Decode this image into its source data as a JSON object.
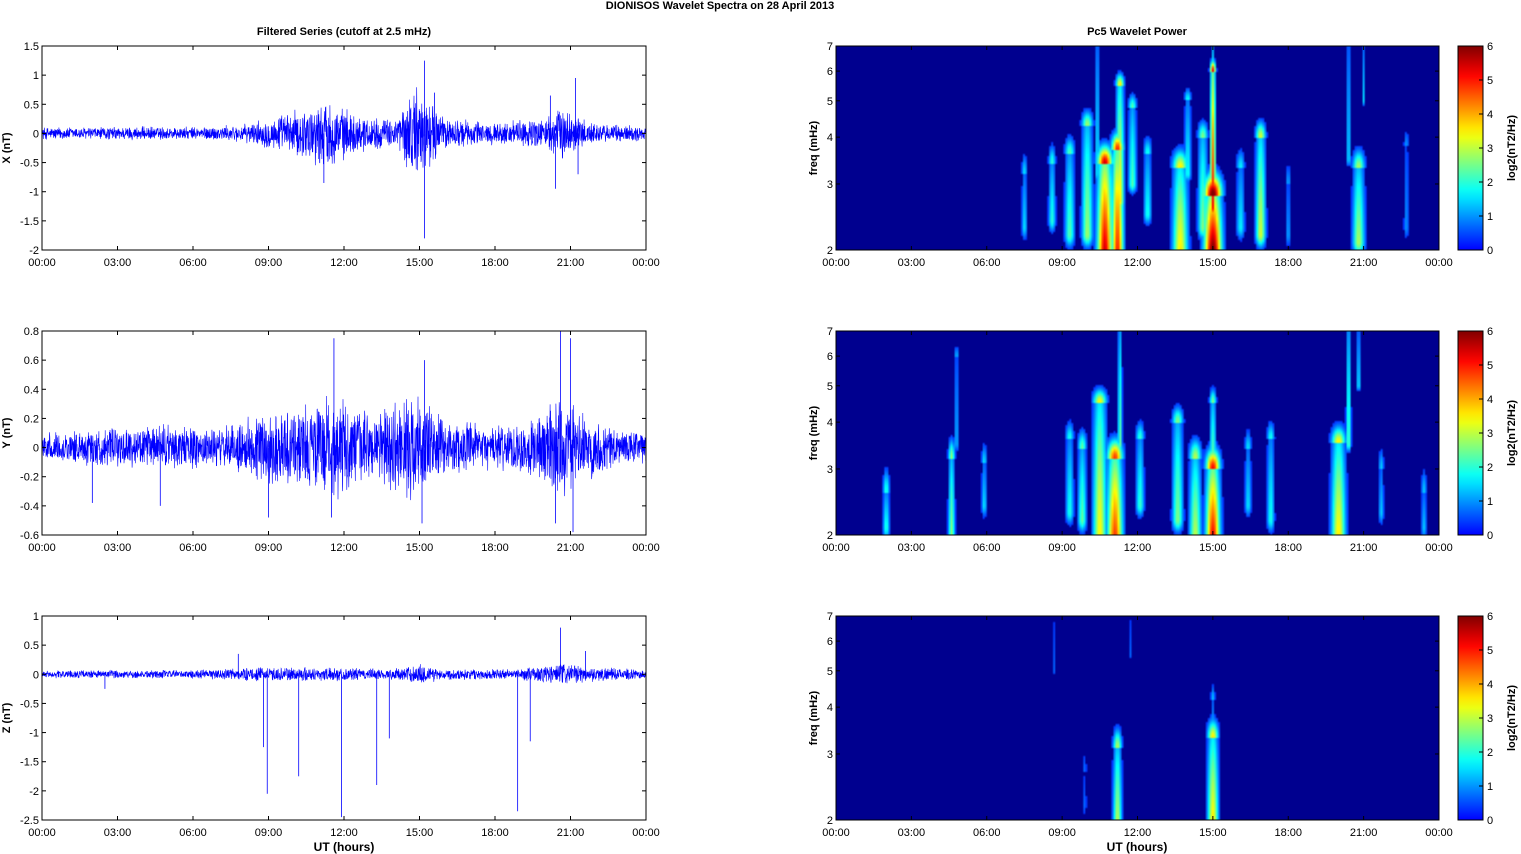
{
  "figure": {
    "title": "DIONISOS Wavelet Spectra on 28 April     2013",
    "left_title": "Filtered Series (cutoff at 2.5 mHz)",
    "right_title": "Pc5 Wavelet Power",
    "xlabel": "UT (hours)"
  },
  "colors": {
    "trace": "#0000ff",
    "background": "#00008f",
    "axis": "#000000"
  },
  "chart_data": [
    {
      "type": "line",
      "id": "X",
      "ylabel": "X (nT)",
      "ylim": [
        -2,
        1.5
      ],
      "yticks": [
        "1.5",
        "1",
        "0.5",
        "0",
        "-0.5",
        "-1",
        "-1.5",
        "-2"
      ],
      "x_ticks": [
        "00:00",
        "03:00",
        "06:00",
        "09:00",
        "12:00",
        "15:00",
        "18:00",
        "21:00",
        "00:00"
      ],
      "xlim_hours": [
        0,
        24
      ],
      "envelope": [
        [
          0,
          0.12
        ],
        [
          2,
          0.12
        ],
        [
          4,
          0.13
        ],
        [
          6,
          0.12
        ],
        [
          8,
          0.16
        ],
        [
          9.5,
          0.35
        ],
        [
          10.5,
          0.5
        ],
        [
          11.3,
          0.65
        ],
        [
          12.5,
          0.35
        ],
        [
          14,
          0.25
        ],
        [
          14.8,
          0.9
        ],
        [
          15.3,
          0.7
        ],
        [
          16,
          0.3
        ],
        [
          18,
          0.2
        ],
        [
          20,
          0.3
        ],
        [
          20.6,
          0.5
        ],
        [
          21.5,
          0.3
        ],
        [
          22,
          0.18
        ],
        [
          24,
          0.15
        ]
      ],
      "spikes": [
        {
          "x": 15.2,
          "y": 1.25
        },
        {
          "x": 15.2,
          "y": -1.8
        },
        {
          "x": 21.2,
          "y": 0.95
        },
        {
          "x": 20.4,
          "y": -0.95
        },
        {
          "x": 21.3,
          "y": -0.7
        },
        {
          "x": 11.2,
          "y": -0.85
        },
        {
          "x": 15.6,
          "y": 0.7
        },
        {
          "x": 20.2,
          "y": 0.65
        }
      ]
    },
    {
      "type": "line",
      "id": "Y",
      "ylabel": "Y (nT)",
      "ylim": [
        -0.6,
        0.8
      ],
      "yticks": [
        "0.8",
        "0.6",
        "0.4",
        "0.2",
        "0",
        "-0.2",
        "-0.4",
        "-0.6"
      ],
      "x_ticks": [
        "00:00",
        "03:00",
        "06:00",
        "09:00",
        "12:00",
        "15:00",
        "18:00",
        "21:00",
        "00:00"
      ],
      "xlim_hours": [
        0,
        24
      ],
      "envelope": [
        [
          0,
          0.1
        ],
        [
          2,
          0.14
        ],
        [
          4,
          0.15
        ],
        [
          5,
          0.18
        ],
        [
          7,
          0.14
        ],
        [
          9,
          0.28
        ],
        [
          10.5,
          0.32
        ],
        [
          11.5,
          0.4
        ],
        [
          13,
          0.25
        ],
        [
          15,
          0.4
        ],
        [
          16,
          0.2
        ],
        [
          18,
          0.16
        ],
        [
          19.5,
          0.22
        ],
        [
          20.5,
          0.4
        ],
        [
          21.5,
          0.25
        ],
        [
          23,
          0.14
        ],
        [
          24,
          0.12
        ]
      ],
      "spikes": [
        {
          "x": 11.6,
          "y": 0.75
        },
        {
          "x": 20.6,
          "y": 0.8
        },
        {
          "x": 15.2,
          "y": 0.6
        },
        {
          "x": 21,
          "y": 0.75
        },
        {
          "x": 21.1,
          "y": -0.58
        },
        {
          "x": 20.4,
          "y": -0.52
        },
        {
          "x": 15.1,
          "y": -0.52
        },
        {
          "x": 9,
          "y": -0.48
        },
        {
          "x": 11.5,
          "y": -0.48
        },
        {
          "x": 2,
          "y": -0.38
        },
        {
          "x": 4.7,
          "y": -0.4
        }
      ]
    },
    {
      "type": "line",
      "id": "Z",
      "ylabel": "Z (nT)",
      "ylim": [
        -2.5,
        1
      ],
      "yticks": [
        "1",
        "0.5",
        "0",
        "-0.5",
        "-1",
        "-1.5",
        "-2",
        "-2.5"
      ],
      "x_ticks": [
        "00:00",
        "03:00",
        "06:00",
        "09:00",
        "12:00",
        "15:00",
        "18:00",
        "21:00",
        "00:00"
      ],
      "xlim_hours": [
        0,
        24
      ],
      "envelope": [
        [
          0,
          0.07
        ],
        [
          3,
          0.08
        ],
        [
          6,
          0.08
        ],
        [
          8,
          0.12
        ],
        [
          10,
          0.14
        ],
        [
          12,
          0.12
        ],
        [
          14,
          0.1
        ],
        [
          15,
          0.2
        ],
        [
          16,
          0.1
        ],
        [
          19,
          0.1
        ],
        [
          20.5,
          0.22
        ],
        [
          21.5,
          0.15
        ],
        [
          24,
          0.08
        ]
      ],
      "spikes": [
        {
          "x": 8.8,
          "y": -1.25
        },
        {
          "x": 8.95,
          "y": -2.05
        },
        {
          "x": 10.2,
          "y": -1.75
        },
        {
          "x": 11.9,
          "y": -2.45
        },
        {
          "x": 13.3,
          "y": -1.9
        },
        {
          "x": 13.8,
          "y": -1.1
        },
        {
          "x": 18.9,
          "y": -2.35
        },
        {
          "x": 19.4,
          "y": -1.15
        },
        {
          "x": 20.6,
          "y": 0.8
        },
        {
          "x": 21.6,
          "y": 0.4
        },
        {
          "x": 2.5,
          "y": -0.25
        },
        {
          "x": 7.8,
          "y": 0.35
        }
      ]
    },
    {
      "type": "heatmap",
      "id": "X-power",
      "ylabel": "freq (mHz)",
      "zlabel": "log2(nT2/Hz)",
      "ylim_mhz": [
        2,
        7
      ],
      "yticks": [
        "7",
        "6",
        "5",
        "4",
        "3",
        "2"
      ],
      "zlim": [
        0,
        6
      ],
      "zticks": [
        "6",
        "5",
        "4",
        "3",
        "2",
        "1",
        "0"
      ],
      "colormap": "jet",
      "x_ticks": [
        "00:00",
        "03:00",
        "06:00",
        "09:00",
        "12:00",
        "15:00",
        "18:00",
        "21:00",
        "00:00"
      ],
      "blobs": [
        {
          "t": 7.5,
          "f0": 2.3,
          "f1": 3.2,
          "w": 0.1,
          "p": 1.6
        },
        {
          "t": 8.6,
          "f0": 2.4,
          "f1": 3.4,
          "w": 0.13,
          "p": 2.0
        },
        {
          "t": 9.3,
          "f0": 2.2,
          "f1": 3.6,
          "w": 0.18,
          "p": 2.3
        },
        {
          "t": 10.0,
          "f0": 2.2,
          "f1": 4.3,
          "w": 0.2,
          "p": 2.8
        },
        {
          "t": 10.7,
          "f0": 2.0,
          "f1": 3.4,
          "w": 0.28,
          "p": 5.5
        },
        {
          "t": 11.2,
          "f0": 2.0,
          "f1": 3.7,
          "w": 0.22,
          "p": 5.0
        },
        {
          "t": 11.3,
          "f0": 2.7,
          "f1": 5.5,
          "w": 0.15,
          "p": 3.6
        },
        {
          "t": 10.4,
          "f0": 3.2,
          "f1": 7.0,
          "w": 0.08,
          "p": 1.8
        },
        {
          "t": 11.8,
          "f0": 3.0,
          "f1": 4.8,
          "w": 0.15,
          "p": 2.3
        },
        {
          "t": 12.4,
          "f0": 2.5,
          "f1": 3.6,
          "w": 0.15,
          "p": 1.9
        },
        {
          "t": 13.7,
          "f0": 2.0,
          "f1": 3.3,
          "w": 0.28,
          "p": 3.6
        },
        {
          "t": 14.0,
          "f0": 3.2,
          "f1": 5.0,
          "w": 0.12,
          "p": 1.9
        },
        {
          "t": 14.6,
          "f0": 2.3,
          "f1": 4.0,
          "w": 0.18,
          "p": 2.6
        },
        {
          "t": 15.0,
          "f0": 2.0,
          "f1": 2.8,
          "w": 0.32,
          "p": 6.2
        },
        {
          "t": 15.0,
          "f0": 2.6,
          "f1": 6.0,
          "w": 0.1,
          "p": 5.2
        },
        {
          "t": 15.0,
          "f0": 5.5,
          "f1": 7.0,
          "w": 0.05,
          "p": 2.2
        },
        {
          "t": 16.1,
          "f0": 2.3,
          "f1": 3.3,
          "w": 0.15,
          "p": 1.7
        },
        {
          "t": 16.9,
          "f0": 2.2,
          "f1": 4.0,
          "w": 0.18,
          "p": 3.2
        },
        {
          "t": 18.0,
          "f0": 2.2,
          "f1": 3.0,
          "w": 0.1,
          "p": 1.1
        },
        {
          "t": 20.8,
          "f0": 2.1,
          "f1": 3.3,
          "w": 0.22,
          "p": 2.9
        },
        {
          "t": 20.4,
          "f0": 3.5,
          "f1": 7.0,
          "w": 0.08,
          "p": 1.6
        },
        {
          "t": 21.0,
          "f0": 5.0,
          "f1": 7.0,
          "w": 0.06,
          "p": 1.4
        },
        {
          "t": 22.7,
          "f0": 2.3,
          "f1": 3.8,
          "w": 0.1,
          "p": 1.0
        }
      ]
    },
    {
      "type": "heatmap",
      "id": "Y-power",
      "ylabel": "freq (mHz)",
      "zlabel": "log2(nT2/Hz)",
      "ylim_mhz": [
        2,
        7
      ],
      "yticks": [
        "7",
        "6",
        "5",
        "4",
        "3",
        "2"
      ],
      "zlim": [
        0,
        6
      ],
      "zticks": [
        "6",
        "5",
        "4",
        "3",
        "2",
        "1",
        "0"
      ],
      "colormap": "jet",
      "x_ticks": [
        "00:00",
        "03:00",
        "06:00",
        "09:00",
        "12:00",
        "15:00",
        "18:00",
        "21:00",
        "00:00"
      ],
      "blobs": [
        {
          "t": 2.0,
          "f0": 2.1,
          "f1": 2.6,
          "w": 0.12,
          "p": 2.0
        },
        {
          "t": 4.6,
          "f0": 2.0,
          "f1": 3.2,
          "w": 0.12,
          "p": 2.7
        },
        {
          "t": 4.8,
          "f0": 3.5,
          "f1": 6.0,
          "w": 0.06,
          "p": 1.6
        },
        {
          "t": 5.9,
          "f0": 2.4,
          "f1": 3.1,
          "w": 0.1,
          "p": 1.6
        },
        {
          "t": 9.3,
          "f0": 2.3,
          "f1": 3.6,
          "w": 0.15,
          "p": 1.9
        },
        {
          "t": 9.8,
          "f0": 2.2,
          "f1": 3.4,
          "w": 0.16,
          "p": 2.4
        },
        {
          "t": 10.5,
          "f0": 2.0,
          "f1": 4.5,
          "w": 0.25,
          "p": 3.5
        },
        {
          "t": 11.1,
          "f0": 2.0,
          "f1": 3.2,
          "w": 0.28,
          "p": 4.8
        },
        {
          "t": 11.3,
          "f0": 3.5,
          "f1": 7.0,
          "w": 0.08,
          "p": 2.5
        },
        {
          "t": 12.1,
          "f0": 2.4,
          "f1": 3.6,
          "w": 0.15,
          "p": 2.1
        },
        {
          "t": 13.6,
          "f0": 2.2,
          "f1": 4.0,
          "w": 0.2,
          "p": 2.6
        },
        {
          "t": 14.3,
          "f0": 2.0,
          "f1": 3.2,
          "w": 0.22,
          "p": 3.0
        },
        {
          "t": 15.0,
          "f0": 2.0,
          "f1": 3.0,
          "w": 0.26,
          "p": 5.2
        },
        {
          "t": 15.0,
          "f0": 3.0,
          "f1": 4.5,
          "w": 0.12,
          "p": 2.6
        },
        {
          "t": 16.4,
          "f0": 2.4,
          "f1": 3.4,
          "w": 0.12,
          "p": 1.6
        },
        {
          "t": 17.3,
          "f0": 2.2,
          "f1": 3.6,
          "w": 0.14,
          "p": 1.9
        },
        {
          "t": 20.0,
          "f0": 2.0,
          "f1": 3.5,
          "w": 0.26,
          "p": 3.6
        },
        {
          "t": 20.4,
          "f0": 3.5,
          "f1": 7.0,
          "w": 0.09,
          "p": 2.4
        },
        {
          "t": 20.8,
          "f0": 5.0,
          "f1": 7.0,
          "w": 0.07,
          "p": 1.8
        },
        {
          "t": 21.7,
          "f0": 2.3,
          "f1": 3.0,
          "w": 0.1,
          "p": 1.4
        },
        {
          "t": 23.4,
          "f0": 2.1,
          "f1": 2.6,
          "w": 0.1,
          "p": 1.4
        }
      ]
    },
    {
      "type": "heatmap",
      "id": "Z-power",
      "ylabel": "freq (mHz)",
      "zlabel": "log2(nT2/Hz)",
      "ylim_mhz": [
        2,
        7
      ],
      "yticks": [
        "7",
        "6",
        "5",
        "4",
        "3",
        "2"
      ],
      "zlim": [
        0,
        6
      ],
      "zticks": [
        "6",
        "5",
        "4",
        "3",
        "2",
        "1",
        "0"
      ],
      "colormap": "jet",
      "x_ticks": [
        "00:00",
        "03:00",
        "06:00",
        "09:00",
        "12:00",
        "15:00",
        "18:00",
        "21:00",
        "00:00"
      ],
      "blobs": [
        {
          "t": 11.2,
          "f0": 2.0,
          "f1": 3.1,
          "w": 0.16,
          "p": 3.0
        },
        {
          "t": 15.0,
          "f0": 2.0,
          "f1": 3.3,
          "w": 0.2,
          "p": 3.6
        },
        {
          "t": 15.0,
          "f0": 3.3,
          "f1": 4.2,
          "w": 0.08,
          "p": 1.3
        },
        {
          "t": 8.7,
          "f0": 5.0,
          "f1": 7.0,
          "w": 0.05,
          "p": 0.8
        },
        {
          "t": 11.7,
          "f0": 5.5,
          "f1": 7.0,
          "w": 0.05,
          "p": 0.8
        },
        {
          "t": 9.9,
          "f0": 2.2,
          "f1": 2.7,
          "w": 0.08,
          "p": 0.7
        }
      ]
    }
  ]
}
